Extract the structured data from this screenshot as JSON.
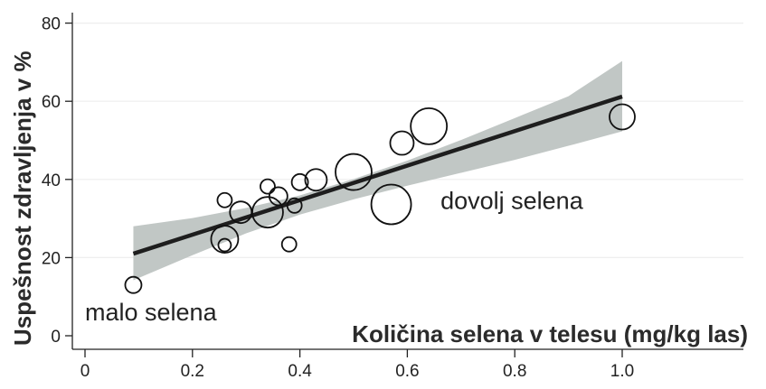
{
  "chart_data": {
    "type": "scatter",
    "title": "",
    "xlabel": "Količina selena v telesu (mg/kg las)",
    "ylabel": "Uspešnost zdravljenja v %",
    "xlim": [
      0,
      1.2
    ],
    "ylim": [
      0,
      80
    ],
    "xticks": [
      0,
      0.2,
      0.4,
      0.6,
      0.8,
      1.0
    ],
    "xtick_labels": [
      "0",
      "0.2",
      "0.4",
      "0.6",
      "0.8",
      "1.0"
    ],
    "yticks": [
      0,
      20,
      40,
      60,
      80
    ],
    "ytick_labels": [
      "0",
      "20",
      "40",
      "60",
      "80"
    ],
    "grid": "horizontal",
    "marker": "hollow circles sized by weight",
    "points": [
      {
        "x": 0.09,
        "y": 13,
        "size": 9
      },
      {
        "x": 0.26,
        "y": 34.7,
        "size": 8
      },
      {
        "x": 0.26,
        "y": 23.2,
        "size": 7
      },
      {
        "x": 0.26,
        "y": 24.7,
        "size": 15
      },
      {
        "x": 0.29,
        "y": 31.6,
        "size": 12
      },
      {
        "x": 0.34,
        "y": 38.2,
        "size": 8
      },
      {
        "x": 0.34,
        "y": 31.6,
        "size": 17
      },
      {
        "x": 0.36,
        "y": 35.7,
        "size": 10
      },
      {
        "x": 0.38,
        "y": 23.4,
        "size": 8
      },
      {
        "x": 0.39,
        "y": 33.3,
        "size": 8
      },
      {
        "x": 0.4,
        "y": 39.3,
        "size": 9
      },
      {
        "x": 0.43,
        "y": 39.9,
        "size": 12
      },
      {
        "x": 0.5,
        "y": 41.9,
        "size": 20
      },
      {
        "x": 0.57,
        "y": 33.6,
        "size": 22
      },
      {
        "x": 0.59,
        "y": 49.3,
        "size": 13
      },
      {
        "x": 0.64,
        "y": 53.6,
        "size": 20
      },
      {
        "x": 1.0,
        "y": 56.0,
        "size": 14
      }
    ],
    "fit_line": {
      "x": [
        0.09,
        1.0
      ],
      "y": [
        21.0,
        61.2
      ]
    },
    "confidence_band": {
      "x": [
        0.09,
        0.2,
        0.3,
        0.4,
        0.5,
        0.6,
        0.7,
        0.8,
        0.9,
        1.0
      ],
      "lower": [
        14.2,
        20.6,
        26.2,
        31.0,
        34.9,
        38.4,
        41.7,
        45.0,
        48.6,
        52.3
      ],
      "upper": [
        28.0,
        30.1,
        32.7,
        35.9,
        40.1,
        44.8,
        50.1,
        55.7,
        61.3,
        70.3
      ]
    },
    "annotations": [
      {
        "text": "malo selena",
        "x": 0.0,
        "y": 6
      },
      {
        "text": "dovolj selena",
        "x": 0.65,
        "y": 34.5
      }
    ],
    "colors": {
      "band": "#c1c7c5",
      "line": "#1e1e1e",
      "marker": "#111111",
      "grid": "#eeeeee"
    }
  }
}
